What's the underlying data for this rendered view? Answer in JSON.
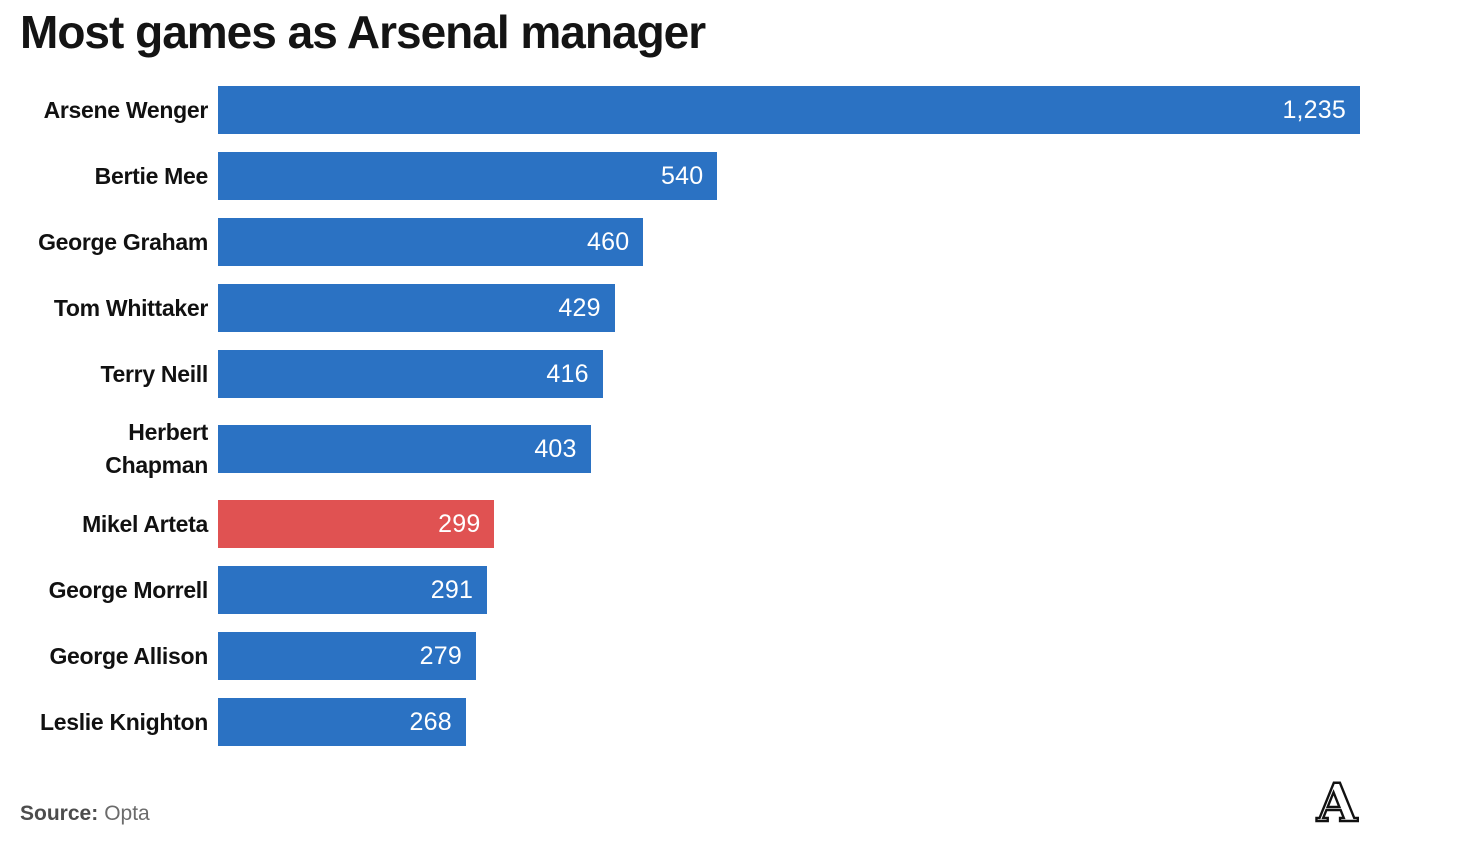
{
  "title": "Most games as Arsenal manager",
  "source": {
    "label": "Source:",
    "value": "Opta"
  },
  "logo": {
    "letter": "A",
    "description": "the-athletic-outlined-serif-a"
  },
  "colors": {
    "bar": "#2b72c3",
    "highlight": "#e05252",
    "title": "#141414",
    "label": "#111111",
    "value_text": "#ffffff",
    "source_label": "#4d4d4d",
    "source_value": "#6b6b6b",
    "logo_ink": "#111111"
  },
  "chart_data": {
    "type": "bar",
    "orientation": "horizontal",
    "title": "Most games as Arsenal manager",
    "xlabel": "",
    "ylabel": "",
    "xlim": [
      0,
      1235
    ],
    "grid": false,
    "legend": false,
    "highlight_category": "Mikel Arteta",
    "categories": [
      "Arsene Wenger",
      "Bertie Mee",
      "George Graham",
      "Tom Whittaker",
      "Terry Neill",
      "Herbert Chapman",
      "Mikel Arteta",
      "George Morrell",
      "George Allison",
      "Leslie Knighton"
    ],
    "values": [
      1235,
      540,
      460,
      429,
      416,
      403,
      299,
      291,
      279,
      268
    ],
    "value_labels": [
      "1,235",
      "540",
      "460",
      "429",
      "416",
      "403",
      "299",
      "291",
      "279",
      "268"
    ],
    "bars": [
      {
        "label": "Arsene Wenger",
        "display_label": "Arsene Wenger",
        "value": 1235,
        "value_label": "1,235",
        "highlighted": false
      },
      {
        "label": "Bertie Mee",
        "display_label": "Bertie Mee",
        "value": 540,
        "value_label": "540",
        "highlighted": false
      },
      {
        "label": "George Graham",
        "display_label": "George Graham",
        "value": 460,
        "value_label": "460",
        "highlighted": false
      },
      {
        "label": "Tom Whittaker",
        "display_label": "Tom Whittaker",
        "value": 429,
        "value_label": "429",
        "highlighted": false
      },
      {
        "label": "Terry Neill",
        "display_label": "Terry Neill",
        "value": 416,
        "value_label": "416",
        "highlighted": false
      },
      {
        "label": "Herbert Chapman",
        "display_label": "Herbert\nChapman",
        "value": 403,
        "value_label": "403",
        "highlighted": false
      },
      {
        "label": "Mikel Arteta",
        "display_label": "Mikel Arteta",
        "value": 299,
        "value_label": "299",
        "highlighted": true
      },
      {
        "label": "George Morrell",
        "display_label": "George Morrell",
        "value": 291,
        "value_label": "291",
        "highlighted": false
      },
      {
        "label": "George Allison",
        "display_label": "George Allison",
        "value": 279,
        "value_label": "279",
        "highlighted": false
      },
      {
        "label": "Leslie Knighton",
        "display_label": "Leslie Knighton",
        "value": 268,
        "value_label": "268",
        "highlighted": false
      }
    ]
  }
}
